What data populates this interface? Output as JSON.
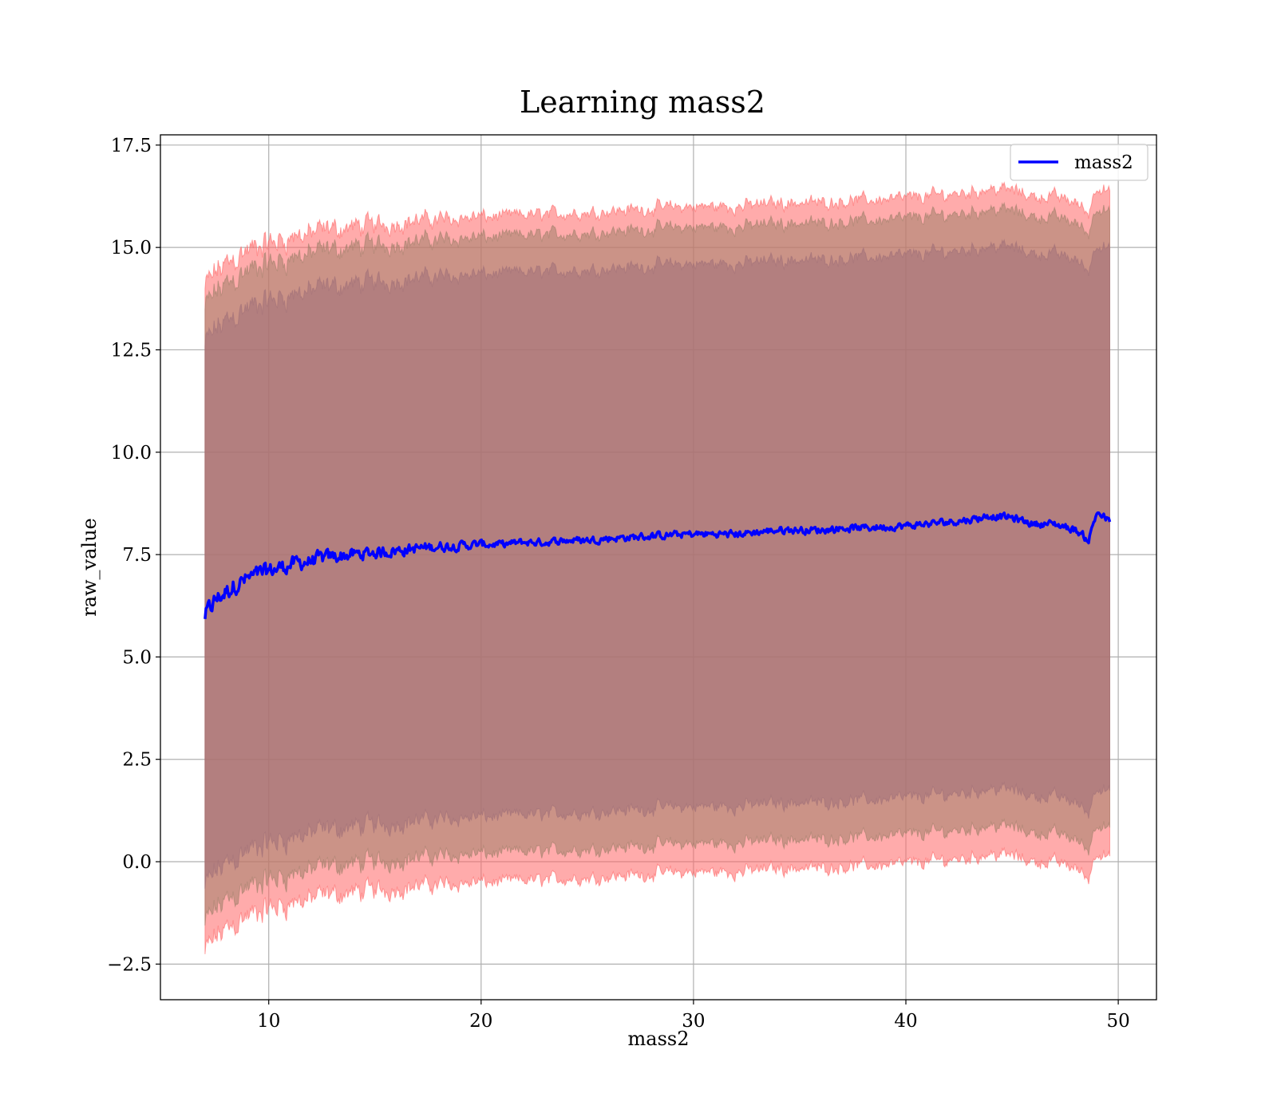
{
  "chart_data": {
    "type": "line",
    "title": "Learning mass2",
    "xlabel": "mass2",
    "ylabel": "raw_value",
    "xlim": [
      4.9,
      51.8
    ],
    "ylim": [
      -3.37,
      17.75
    ],
    "xticks": [
      10,
      20,
      30,
      40,
      50
    ],
    "xtick_labels": [
      "10",
      "20",
      "30",
      "40",
      "50"
    ],
    "yticks": [
      -2.5,
      0.0,
      2.5,
      5.0,
      7.5,
      10.0,
      12.5,
      15.0,
      17.5
    ],
    "ytick_labels": [
      "−2.5",
      "0.0",
      "2.5",
      "5.0",
      "7.5",
      "10.0",
      "12.5",
      "15.0",
      "17.5"
    ],
    "grid": true,
    "legend": {
      "position": "upper right",
      "entries": [
        {
          "label": "mass2",
          "color": "#0000ff"
        }
      ]
    },
    "series": [
      {
        "name": "mass2",
        "color": "#0000ff",
        "x": [
          7.0,
          7.5,
          8.0,
          8.5,
          9.0,
          9.5,
          10.0,
          11.0,
          12.0,
          13.0,
          14.0,
          15.0,
          16.0,
          17.0,
          18.0,
          19.0,
          20.0,
          21.0,
          22.0,
          23.0,
          24.0,
          25.0,
          26.0,
          27.0,
          28.0,
          29.0,
          30.0,
          31.0,
          32.0,
          33.0,
          34.0,
          35.0,
          36.0,
          37.0,
          38.0,
          39.0,
          40.0,
          41.0,
          42.0,
          43.0,
          44.0,
          45.0,
          46.0,
          47.0,
          48.0,
          48.6,
          49.0,
          49.6
        ],
        "y": [
          6.0,
          6.4,
          6.6,
          6.8,
          6.9,
          7.0,
          7.1,
          7.25,
          7.35,
          7.45,
          7.5,
          7.55,
          7.6,
          7.65,
          7.7,
          7.72,
          7.75,
          7.75,
          7.8,
          7.8,
          7.85,
          7.85,
          7.9,
          7.92,
          7.95,
          7.98,
          8.0,
          8.0,
          8.0,
          8.05,
          8.1,
          8.1,
          8.1,
          8.15,
          8.15,
          8.18,
          8.2,
          8.25,
          8.3,
          8.35,
          8.45,
          8.4,
          8.25,
          8.25,
          8.1,
          7.85,
          8.55,
          8.3
        ]
      }
    ],
    "bands": [
      {
        "name": "outer",
        "color": "#ff6666",
        "upper_offset": 8.0,
        "lower_offset": -8.25
      },
      {
        "name": "middle",
        "color": "#a0806a",
        "upper_offset": 7.5,
        "lower_offset": -7.55
      },
      {
        "name": "inner",
        "color": "#a07078",
        "upper_offset": 6.6,
        "lower_offset": -6.65
      }
    ],
    "noise": {
      "band_amplitude": 0.35,
      "line_amplitude": 0.15
    }
  }
}
